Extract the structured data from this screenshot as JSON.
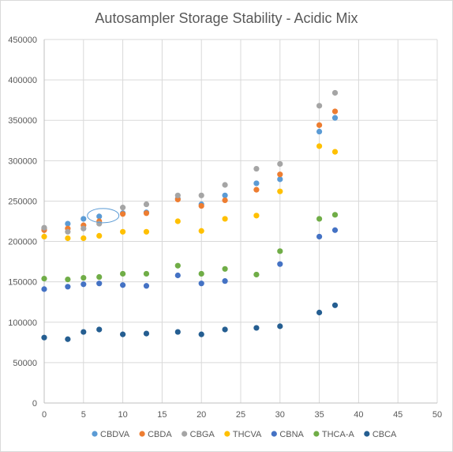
{
  "chart_data": {
    "type": "scatter",
    "title": "Autosampler Storage Stability  - Acidic Mix",
    "xlabel": "",
    "ylabel": "",
    "xlim": [
      0,
      50
    ],
    "ylim": [
      0,
      450000
    ],
    "x_ticks": [
      0,
      5,
      10,
      15,
      20,
      25,
      30,
      35,
      40,
      45,
      50
    ],
    "y_ticks": [
      0,
      50000,
      100000,
      150000,
      200000,
      250000,
      300000,
      350000,
      400000,
      450000
    ],
    "grid": true,
    "legend_position": "bottom",
    "x": [
      0,
      3,
      5,
      7,
      10,
      13,
      17,
      20,
      23,
      27,
      30,
      35,
      37
    ],
    "series": [
      {
        "name": "CBDVA",
        "color": "#5b9bd5",
        "values": [
          216000,
          222000,
          228000,
          231000,
          235000,
          236000,
          253000,
          246000,
          257000,
          272000,
          277000,
          336000,
          353000
        ]
      },
      {
        "name": "CBDA",
        "color": "#ed7d31",
        "values": [
          214000,
          216000,
          220000,
          225000,
          234000,
          235000,
          252000,
          244000,
          251000,
          264000,
          283000,
          344000,
          361000
        ]
      },
      {
        "name": "CBGA",
        "color": "#a5a5a5",
        "values": [
          217000,
          212000,
          216000,
          222000,
          242000,
          246000,
          257000,
          257000,
          270000,
          290000,
          296000,
          368000,
          384000
        ]
      },
      {
        "name": "THCVA",
        "color": "#ffc000",
        "values": [
          206000,
          204000,
          204000,
          207000,
          212000,
          212000,
          225000,
          213000,
          228000,
          232000,
          262000,
          318000,
          311000
        ]
      },
      {
        "name": "CBNA",
        "color": "#4472c4",
        "values": [
          141000,
          144000,
          147000,
          148000,
          146000,
          145000,
          158000,
          148000,
          151000,
          null,
          172000,
          206000,
          214000
        ]
      },
      {
        "name": "THCA-A",
        "color": "#70ad47",
        "values": [
          154000,
          153000,
          155000,
          156000,
          160000,
          160000,
          170000,
          160000,
          166000,
          159000,
          188000,
          228000,
          233000
        ]
      },
      {
        "name": "CBCA",
        "color": "#255e91",
        "values": [
          81000,
          79000,
          88000,
          91000,
          85000,
          86000,
          88000,
          85000,
          91000,
          93000,
          95000,
          112000,
          121000
        ]
      }
    ],
    "annotation": {
      "shape": "ellipse",
      "center": [
        7.5,
        232000
      ]
    }
  }
}
